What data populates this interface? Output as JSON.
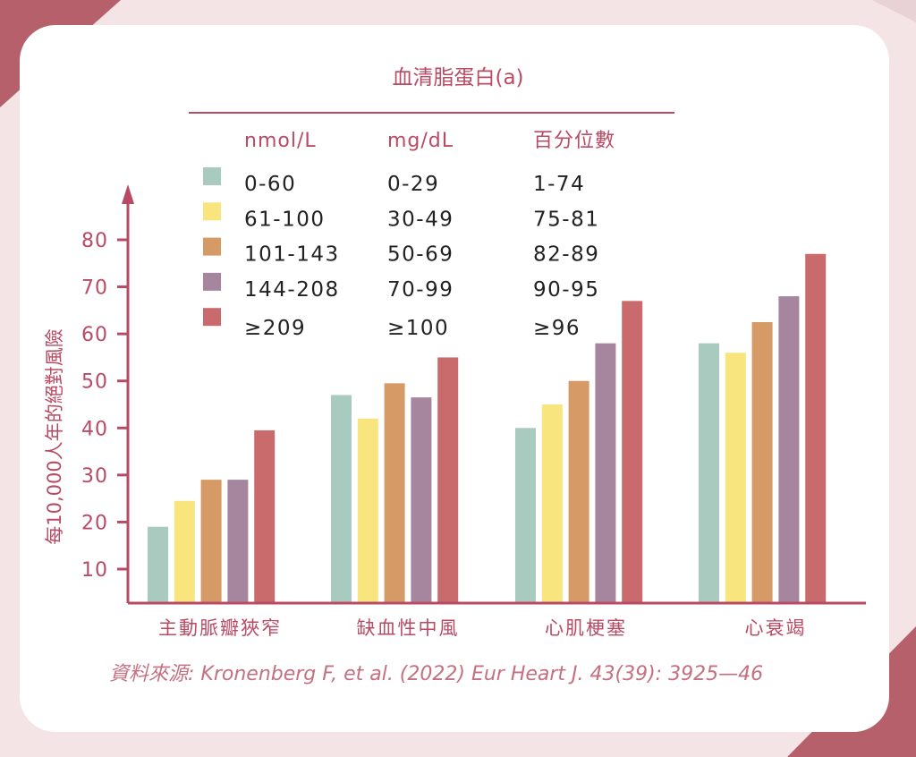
{
  "chart_data": {
    "type": "bar",
    "title": "血清脂蛋白(a)",
    "ylabel": "每10,000人年的絕對風險",
    "xlabel": "",
    "ylim": [
      0,
      85
    ],
    "yticks": [
      10,
      20,
      30,
      40,
      50,
      60,
      70,
      80
    ],
    "categories": [
      "主動脈瓣狹窄",
      "缺血性中風",
      "心肌梗塞",
      "心衰竭"
    ],
    "legend": {
      "placement": "top",
      "headers": [
        "nmol/L",
        "mg/dL",
        "百分位數"
      ],
      "rows": [
        [
          "0-60",
          "0-29",
          "1-74"
        ],
        [
          "61-100",
          "30-49",
          "75-81"
        ],
        [
          "101-143",
          "50-69",
          "82-89"
        ],
        [
          "144-208",
          "70-99",
          "90-95"
        ],
        [
          "≥209",
          "≥100",
          "≥96"
        ]
      ]
    },
    "series": [
      {
        "name": "0-60",
        "color": "#a9cbbf",
        "values": [
          19,
          47,
          40,
          58
        ]
      },
      {
        "name": "61-100",
        "color": "#f9e57e",
        "values": [
          24.5,
          42,
          45,
          56
        ]
      },
      {
        "name": "101-143",
        "color": "#d69a66",
        "values": [
          29,
          49.5,
          50,
          62.5
        ]
      },
      {
        "name": "144-208",
        "color": "#a5869e",
        "values": [
          29,
          46.5,
          58,
          68
        ]
      },
      {
        "name": "≥209",
        "color": "#c96a6d",
        "values": [
          39.5,
          55,
          67,
          77
        ]
      }
    ],
    "source": "資料來源: Kronenberg F, et al. (2022) Eur Heart J. 43(39): 3925—46",
    "grid": false
  },
  "colors": {
    "accent": "#b84b63",
    "corner": "#b5606a"
  }
}
